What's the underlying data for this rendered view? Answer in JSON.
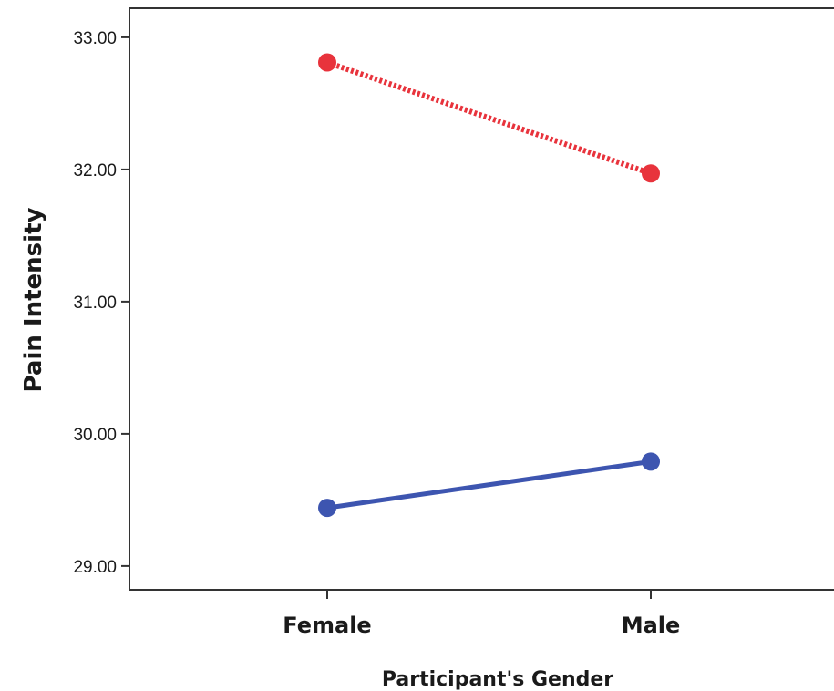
{
  "chart_data": {
    "type": "line",
    "title": "",
    "xlabel": "Participant's Gender",
    "ylabel": "Pain Intensity",
    "categories": [
      "Female",
      "Male"
    ],
    "yticks": [
      "29.00",
      "30.00",
      "31.00",
      "32.00",
      "33.00"
    ],
    "ylim": [
      28.82,
      33.22
    ],
    "grid": false,
    "legend": "none",
    "series": [
      {
        "values": [
          32.81,
          31.97
        ],
        "color": "#e8333c",
        "line_style": "dotted"
      },
      {
        "values": [
          29.44,
          29.79
        ],
        "color": "#3d55b0",
        "line_style": "solid"
      }
    ]
  }
}
